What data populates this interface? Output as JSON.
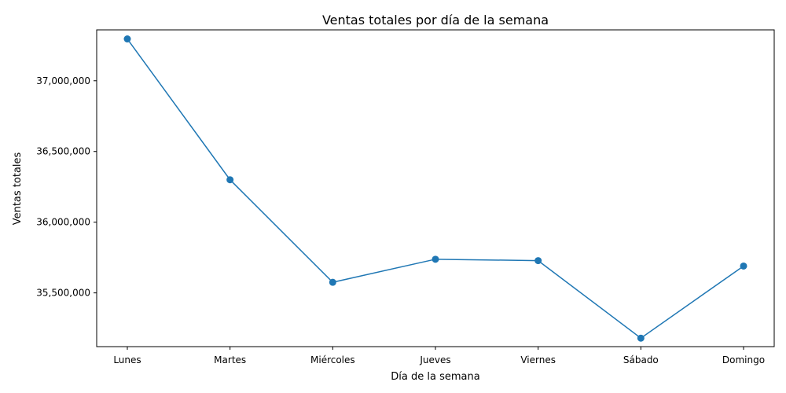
{
  "chart_data": {
    "type": "line",
    "title": "Ventas totales por día de la semana",
    "xlabel": "Día de la semana",
    "ylabel": "Ventas totales",
    "categories": [
      "Lunes",
      "Martes",
      "Miércoles",
      "Jueves",
      "Viernes",
      "Sábado",
      "Domingo"
    ],
    "series": [
      {
        "values": [
          37296000,
          36300000,
          35575000,
          35738000,
          35728000,
          35180000,
          35690000
        ],
        "color": "#1f77b4",
        "marker": "circle"
      }
    ],
    "ylim": [
      35120000,
      37360000
    ],
    "yticks": [
      35500000,
      36000000,
      36500000,
      37000000
    ],
    "ytick_labels": [
      "35,500,000",
      "36,000,000",
      "36,500,000",
      "37,000,000"
    ],
    "grid": false,
    "legend": "none"
  }
}
